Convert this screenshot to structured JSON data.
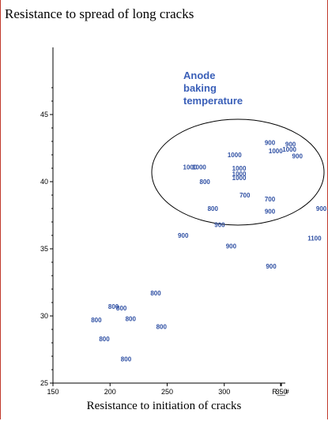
{
  "chart_data": {
    "type": "scatter",
    "title": "Resistance to spread of long cracks",
    "xlabel": "Resistance to initiation of cracks",
    "ylabel": "",
    "xlim": [
      150,
      400
    ],
    "ylim": [
      25,
      47
    ],
    "x_ticks": [
      "150",
      "200",
      "250",
      "300",
      "350",
      "R__#"
    ],
    "y_ticks": [
      "25",
      "30",
      "35",
      "40",
      "45"
    ],
    "annotation": [
      "Anode",
      "baking",
      "temperature"
    ],
    "colors": {
      "points": "#2e4fa3",
      "annotation": "#3a5fb8",
      "frame": "#c0392b"
    },
    "points": [
      {
        "x": 340,
        "y": 42.9,
        "label": "900"
      },
      {
        "x": 358,
        "y": 42.8,
        "label": "900"
      },
      {
        "x": 357,
        "y": 42.4,
        "label": "1000"
      },
      {
        "x": 345,
        "y": 42.3,
        "label": "1000"
      },
      {
        "x": 364,
        "y": 41.9,
        "label": "900"
      },
      {
        "x": 309,
        "y": 42.0,
        "label": "1000"
      },
      {
        "x": 270,
        "y": 41.1,
        "label": "1000"
      },
      {
        "x": 278,
        "y": 41.1,
        "label": "1000"
      },
      {
        "x": 313,
        "y": 41.0,
        "label": "1000"
      },
      {
        "x": 313,
        "y": 40.6,
        "label": "1000"
      },
      {
        "x": 313,
        "y": 40.3,
        "label": "1000"
      },
      {
        "x": 283,
        "y": 40.0,
        "label": "800"
      },
      {
        "x": 318,
        "y": 39.0,
        "label": "700"
      },
      {
        "x": 340,
        "y": 38.7,
        "label": "700"
      },
      {
        "x": 290,
        "y": 38.0,
        "label": "800"
      },
      {
        "x": 340,
        "y": 37.8,
        "label": "900"
      },
      {
        "x": 385,
        "y": 38.0,
        "label": "900"
      },
      {
        "x": 396,
        "y": 37.8,
        "label": "1100"
      },
      {
        "x": 296,
        "y": 36.8,
        "label": "900"
      },
      {
        "x": 264,
        "y": 36.0,
        "label": "900"
      },
      {
        "x": 379,
        "y": 35.8,
        "label": "1100"
      },
      {
        "x": 306,
        "y": 35.2,
        "label": "900"
      },
      {
        "x": 341,
        "y": 33.7,
        "label": "900"
      },
      {
        "x": 240,
        "y": 31.7,
        "label": "800"
      },
      {
        "x": 203,
        "y": 30.7,
        "label": "800"
      },
      {
        "x": 210,
        "y": 30.6,
        "label": "800"
      },
      {
        "x": 188,
        "y": 29.7,
        "label": "800"
      },
      {
        "x": 218,
        "y": 29.8,
        "label": "800"
      },
      {
        "x": 245,
        "y": 29.2,
        "label": "800"
      },
      {
        "x": 195,
        "y": 28.3,
        "label": "800"
      },
      {
        "x": 214,
        "y": 26.8,
        "label": "800"
      }
    ]
  }
}
